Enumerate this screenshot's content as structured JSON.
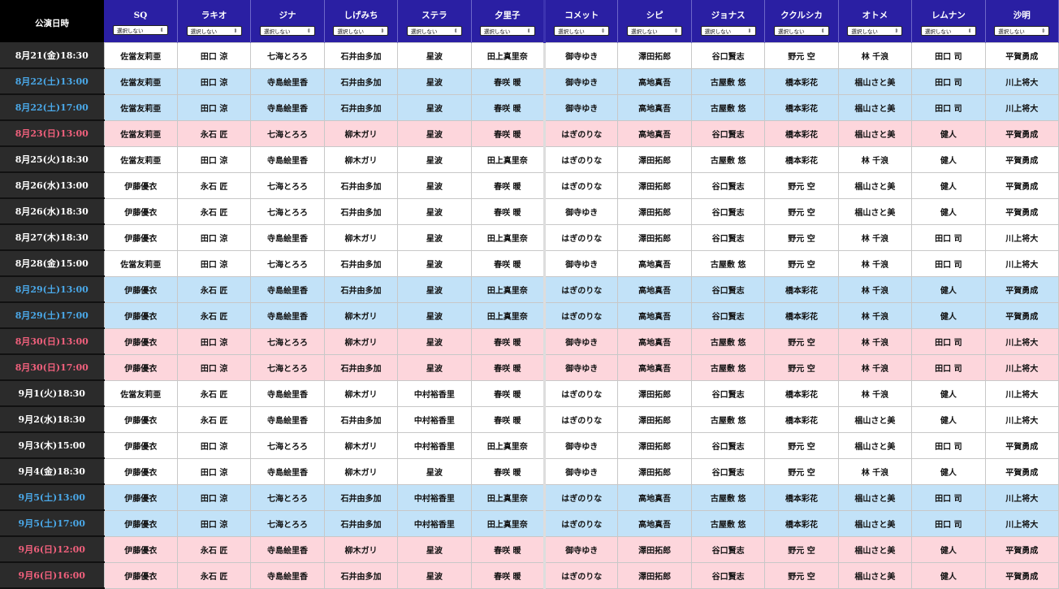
{
  "header": {
    "date_label": "公演日時",
    "select_default": "選択しない",
    "roles": [
      "SQ",
      "ラキオ",
      "ジナ",
      "しげみち",
      "ステラ",
      "夕里子",
      "コメット",
      "シピ",
      "ジョナス",
      "ククルシカ",
      "オトメ",
      "レムナン",
      "沙明"
    ]
  },
  "colors": {
    "header_bg": "#2a1fa3",
    "saturday_bg": "#c2e2f8",
    "sunday_bg": "#fdd6dc",
    "saturday_text": "#4aa8e8",
    "sunday_text": "#f0607c"
  },
  "performances": [
    {
      "date": "8月21(金)18:30",
      "day": "weekday",
      "cast": [
        "佐當友莉亜",
        "田口 涼",
        "七海とろろ",
        "石井由多加",
        "星波",
        "田上真里奈",
        "御寺ゆき",
        "澤田拓郎",
        "谷口賢志",
        "野元 空",
        "林 千浪",
        "田口 司",
        "平賀勇成"
      ]
    },
    {
      "date": "8月22(土)13:00",
      "day": "sat",
      "cast": [
        "佐當友莉亜",
        "田口 涼",
        "寺島絵里香",
        "石井由多加",
        "星波",
        "春咲 暖",
        "御寺ゆき",
        "高地真吾",
        "古屋敷 悠",
        "橋本彩花",
        "椙山さと美",
        "田口 司",
        "川上将大"
      ]
    },
    {
      "date": "8月22(土)17:00",
      "day": "sat",
      "cast": [
        "佐當友莉亜",
        "田口 涼",
        "寺島絵里香",
        "石井由多加",
        "星波",
        "春咲 暖",
        "御寺ゆき",
        "高地真吾",
        "古屋敷 悠",
        "橋本彩花",
        "椙山さと美",
        "田口 司",
        "川上将大"
      ]
    },
    {
      "date": "8月23(日)13:00",
      "day": "sun",
      "cast": [
        "佐當友莉亜",
        "永石 匠",
        "七海とろろ",
        "柳木ガリ",
        "星波",
        "春咲 暖",
        "はぎのりな",
        "高地真吾",
        "谷口賢志",
        "橋本彩花",
        "椙山さと美",
        "健人",
        "平賀勇成"
      ]
    },
    {
      "date": "8月25(火)18:30",
      "day": "weekday",
      "cast": [
        "佐當友莉亜",
        "田口 涼",
        "寺島絵里香",
        "柳木ガリ",
        "星波",
        "田上真里奈",
        "はぎのりな",
        "澤田拓郎",
        "古屋敷 悠",
        "橋本彩花",
        "林 千浪",
        "健人",
        "平賀勇成"
      ]
    },
    {
      "date": "8月26(水)13:00",
      "day": "weekday",
      "cast": [
        "伊藤優衣",
        "永石 匠",
        "七海とろろ",
        "石井由多加",
        "星波",
        "春咲 暖",
        "はぎのりな",
        "澤田拓郎",
        "谷口賢志",
        "野元 空",
        "椙山さと美",
        "健人",
        "平賀勇成"
      ]
    },
    {
      "date": "8月26(水)18:30",
      "day": "weekday",
      "cast": [
        "伊藤優衣",
        "永石 匠",
        "七海とろろ",
        "石井由多加",
        "星波",
        "春咲 暖",
        "御寺ゆき",
        "澤田拓郎",
        "谷口賢志",
        "野元 空",
        "椙山さと美",
        "健人",
        "平賀勇成"
      ]
    },
    {
      "date": "8月27(木)18:30",
      "day": "weekday",
      "cast": [
        "伊藤優衣",
        "田口 涼",
        "寺島絵里香",
        "柳木ガリ",
        "星波",
        "田上真里奈",
        "はぎのりな",
        "澤田拓郎",
        "谷口賢志",
        "野元 空",
        "林 千浪",
        "田口 司",
        "川上将大"
      ]
    },
    {
      "date": "8月28(金)15:00",
      "day": "weekday",
      "cast": [
        "佐當友莉亜",
        "田口 涼",
        "七海とろろ",
        "石井由多加",
        "星波",
        "春咲 暖",
        "御寺ゆき",
        "高地真吾",
        "古屋敷 悠",
        "野元 空",
        "林 千浪",
        "田口 司",
        "川上将大"
      ]
    },
    {
      "date": "8月29(土)13:00",
      "day": "sat",
      "cast": [
        "伊藤優衣",
        "永石 匠",
        "寺島絵里香",
        "石井由多加",
        "星波",
        "田上真里奈",
        "はぎのりな",
        "高地真吾",
        "谷口賢志",
        "橋本彩花",
        "林 千浪",
        "健人",
        "平賀勇成"
      ]
    },
    {
      "date": "8月29(土)17:00",
      "day": "sat",
      "cast": [
        "伊藤優衣",
        "永石 匠",
        "寺島絵里香",
        "柳木ガリ",
        "星波",
        "田上真里奈",
        "はぎのりな",
        "高地真吾",
        "谷口賢志",
        "橋本彩花",
        "林 千浪",
        "健人",
        "平賀勇成"
      ]
    },
    {
      "date": "8月30(日)13:00",
      "day": "sun",
      "cast": [
        "伊藤優衣",
        "田口 涼",
        "七海とろろ",
        "柳木ガリ",
        "星波",
        "春咲 暖",
        "御寺ゆき",
        "高地真吾",
        "古屋敷 悠",
        "野元 空",
        "林 千浪",
        "田口 司",
        "川上将大"
      ]
    },
    {
      "date": "8月30(日)17:00",
      "day": "sun",
      "cast": [
        "伊藤優衣",
        "田口 涼",
        "七海とろろ",
        "石井由多加",
        "星波",
        "春咲 暖",
        "御寺ゆき",
        "高地真吾",
        "古屋敷 悠",
        "野元 空",
        "林 千浪",
        "田口 司",
        "川上将大"
      ]
    },
    {
      "date": "9月1(火)18:30",
      "day": "weekday",
      "cast": [
        "佐當友莉亜",
        "永石 匠",
        "寺島絵里香",
        "柳木ガリ",
        "中村裕香里",
        "春咲 暖",
        "はぎのりな",
        "澤田拓郎",
        "谷口賢志",
        "橋本彩花",
        "林 千浪",
        "健人",
        "川上将大"
      ]
    },
    {
      "date": "9月2(水)18:30",
      "day": "weekday",
      "cast": [
        "伊藤優衣",
        "永石 匠",
        "寺島絵里香",
        "石井由多加",
        "中村裕香里",
        "春咲 暖",
        "はぎのりな",
        "澤田拓郎",
        "古屋敷 悠",
        "橋本彩花",
        "椙山さと美",
        "健人",
        "川上将大"
      ]
    },
    {
      "date": "9月3(木)15:00",
      "day": "weekday",
      "cast": [
        "伊藤優衣",
        "田口 涼",
        "七海とろろ",
        "柳木ガリ",
        "中村裕香里",
        "田上真里奈",
        "御寺ゆき",
        "澤田拓郎",
        "谷口賢志",
        "野元 空",
        "椙山さと美",
        "田口 司",
        "平賀勇成"
      ]
    },
    {
      "date": "9月4(金)18:30",
      "day": "weekday",
      "cast": [
        "伊藤優衣",
        "田口 涼",
        "寺島絵里香",
        "柳木ガリ",
        "星波",
        "春咲 暖",
        "御寺ゆき",
        "澤田拓郎",
        "谷口賢志",
        "野元 空",
        "林 千浪",
        "健人",
        "平賀勇成"
      ]
    },
    {
      "date": "9月5(土)13:00",
      "day": "sat",
      "cast": [
        "伊藤優衣",
        "田口 涼",
        "七海とろろ",
        "石井由多加",
        "中村裕香里",
        "田上真里奈",
        "はぎのりな",
        "高地真吾",
        "古屋敷 悠",
        "橋本彩花",
        "椙山さと美",
        "田口 司",
        "川上将大"
      ]
    },
    {
      "date": "9月5(土)17:00",
      "day": "sat",
      "cast": [
        "伊藤優衣",
        "田口 涼",
        "七海とろろ",
        "石井由多加",
        "中村裕香里",
        "田上真里奈",
        "はぎのりな",
        "高地真吾",
        "古屋敷 悠",
        "橋本彩花",
        "椙山さと美",
        "田口 司",
        "川上将大"
      ]
    },
    {
      "date": "9月6(日)12:00",
      "day": "sun",
      "cast": [
        "伊藤優衣",
        "永石 匠",
        "寺島絵里香",
        "柳木ガリ",
        "星波",
        "春咲 暖",
        "御寺ゆき",
        "澤田拓郎",
        "谷口賢志",
        "野元 空",
        "椙山さと美",
        "健人",
        "平賀勇成"
      ]
    },
    {
      "date": "9月6(日)16:00",
      "day": "sun",
      "cast": [
        "伊藤優衣",
        "永石 匠",
        "寺島絵里香",
        "石井由多加",
        "星波",
        "春咲 暖",
        "はぎのりな",
        "澤田拓郎",
        "谷口賢志",
        "野元 空",
        "椙山さと美",
        "健人",
        "平賀勇成"
      ]
    }
  ]
}
